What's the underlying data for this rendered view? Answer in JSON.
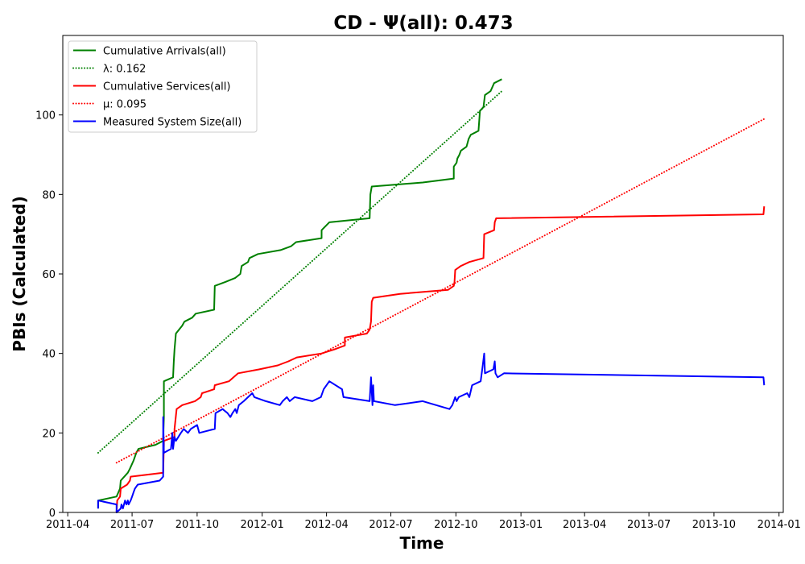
{
  "chart_data": {
    "type": "line",
    "title": "CD -  Ψ(all): 0.473",
    "xlabel": "Time",
    "ylabel": "PBIs (Calculated)",
    "x_type": "date",
    "xlim": [
      "2011-03-25",
      "2014-01-07"
    ],
    "ylim": [
      0,
      120
    ],
    "x_ticks": [
      "2011-04",
      "2011-07",
      "2011-10",
      "2012-01",
      "2012-04",
      "2012-07",
      "2012-10",
      "2013-01",
      "2013-04",
      "2013-07",
      "2013-10",
      "2014-01"
    ],
    "y_ticks": [
      0,
      20,
      40,
      60,
      80,
      100
    ],
    "grid": false,
    "legend_position": "upper-left",
    "series": [
      {
        "name": "Cumulative Arrivals(all)",
        "color": "#008000",
        "style": "solid",
        "points": [
          [
            "2011-05-14",
            1
          ],
          [
            "2011-05-14",
            3
          ],
          [
            "2011-06-09",
            4
          ],
          [
            "2011-06-14",
            6
          ],
          [
            "2011-06-15",
            8
          ],
          [
            "2011-06-25",
            10
          ],
          [
            "2011-06-28",
            11
          ],
          [
            "2011-07-03",
            13
          ],
          [
            "2011-07-07",
            15
          ],
          [
            "2011-07-10",
            16
          ],
          [
            "2011-08-03",
            17
          ],
          [
            "2011-08-14",
            18
          ],
          [
            "2011-08-15",
            24
          ],
          [
            "2011-08-15",
            33
          ],
          [
            "2011-08-28",
            34
          ],
          [
            "2011-08-29",
            38
          ],
          [
            "2011-08-30",
            41
          ],
          [
            "2011-09-01",
            45
          ],
          [
            "2011-09-10",
            47
          ],
          [
            "2011-09-13",
            48
          ],
          [
            "2011-09-24",
            49
          ],
          [
            "2011-09-29",
            50
          ],
          [
            "2011-10-25",
            51
          ],
          [
            "2011-10-26",
            57
          ],
          [
            "2011-11-10",
            58
          ],
          [
            "2011-11-24",
            59
          ],
          [
            "2011-12-01",
            60
          ],
          [
            "2011-12-03",
            62
          ],
          [
            "2011-12-12",
            63
          ],
          [
            "2011-12-14",
            64
          ],
          [
            "2011-12-26",
            65
          ],
          [
            "2012-01-27",
            66
          ],
          [
            "2012-02-11",
            67
          ],
          [
            "2012-02-18",
            68
          ],
          [
            "2012-03-25",
            69
          ],
          [
            "2012-03-25",
            71
          ],
          [
            "2012-04-05",
            73
          ],
          [
            "2012-06-01",
            74
          ],
          [
            "2012-06-02",
            80
          ],
          [
            "2012-06-04",
            82
          ],
          [
            "2012-08-15",
            83
          ],
          [
            "2012-09-28",
            84
          ],
          [
            "2012-09-28",
            87
          ],
          [
            "2012-10-02",
            88
          ],
          [
            "2012-10-03",
            89
          ],
          [
            "2012-10-06",
            90
          ],
          [
            "2012-10-08",
            91
          ],
          [
            "2012-10-16",
            92
          ],
          [
            "2012-10-19",
            94
          ],
          [
            "2012-10-22",
            95
          ],
          [
            "2012-11-02",
            96
          ],
          [
            "2012-11-04",
            101
          ],
          [
            "2012-11-09",
            102
          ],
          [
            "2012-11-11",
            105
          ],
          [
            "2012-11-19",
            106
          ],
          [
            "2012-11-24",
            108
          ],
          [
            "2012-12-05",
            109
          ]
        ]
      },
      {
        "name": "λ: 0.162",
        "color": "#008000",
        "style": "dotted",
        "points": [
          [
            "2011-05-14",
            15
          ],
          [
            "2012-12-05",
            106
          ]
        ]
      },
      {
        "name": "Cumulative Services(all)",
        "color": "#ff0000",
        "style": "solid",
        "points": [
          [
            "2011-06-09",
            0
          ],
          [
            "2011-06-10",
            3
          ],
          [
            "2011-06-14",
            4
          ],
          [
            "2011-06-15",
            6
          ],
          [
            "2011-06-24",
            7
          ],
          [
            "2011-06-28",
            8
          ],
          [
            "2011-06-29",
            9
          ],
          [
            "2011-08-14",
            10
          ],
          [
            "2011-08-15",
            17
          ],
          [
            "2011-08-15",
            18
          ],
          [
            "2011-08-30",
            19
          ],
          [
            "2011-08-30",
            21
          ],
          [
            "2011-09-02",
            26
          ],
          [
            "2011-09-10",
            27
          ],
          [
            "2011-09-28",
            28
          ],
          [
            "2011-10-06",
            29
          ],
          [
            "2011-10-08",
            30
          ],
          [
            "2011-10-25",
            31
          ],
          [
            "2011-10-26",
            32
          ],
          [
            "2011-11-15",
            33
          ],
          [
            "2011-11-28",
            35
          ],
          [
            "2011-12-28",
            36
          ],
          [
            "2012-01-23",
            37
          ],
          [
            "2012-02-07",
            38
          ],
          [
            "2012-02-19",
            39
          ],
          [
            "2012-03-25",
            40
          ],
          [
            "2012-04-12",
            41
          ],
          [
            "2012-04-27",
            42
          ],
          [
            "2012-04-27",
            44
          ],
          [
            "2012-05-28",
            45
          ],
          [
            "2012-06-01",
            46
          ],
          [
            "2012-06-03",
            48
          ],
          [
            "2012-06-04",
            53
          ],
          [
            "2012-06-06",
            54
          ],
          [
            "2012-07-14",
            55
          ],
          [
            "2012-09-20",
            56
          ],
          [
            "2012-09-28",
            57
          ],
          [
            "2012-09-29",
            58
          ],
          [
            "2012-09-30",
            61
          ],
          [
            "2012-10-08",
            62
          ],
          [
            "2012-10-20",
            63
          ],
          [
            "2012-11-09",
            64
          ],
          [
            "2012-11-10",
            70
          ],
          [
            "2012-11-24",
            71
          ],
          [
            "2012-11-25",
            73
          ],
          [
            "2012-11-27",
            74
          ],
          [
            "2013-12-10",
            75
          ],
          [
            "2013-12-11",
            77
          ]
        ]
      },
      {
        "name": "μ: 0.095",
        "color": "#ff0000",
        "style": "dotted",
        "points": [
          [
            "2011-06-09",
            12.5
          ],
          [
            "2013-12-11",
            99
          ]
        ]
      },
      {
        "name": "Measured System Size(all)",
        "color": "#0000ff",
        "style": "solid",
        "points": [
          [
            "2011-05-14",
            1
          ],
          [
            "2011-05-14",
            3
          ],
          [
            "2011-06-09",
            2
          ],
          [
            "2011-06-09",
            0
          ],
          [
            "2011-06-15",
            1
          ],
          [
            "2011-06-16",
            2
          ],
          [
            "2011-06-18",
            1
          ],
          [
            "2011-06-21",
            3
          ],
          [
            "2011-06-23",
            2
          ],
          [
            "2011-06-25",
            3
          ],
          [
            "2011-06-26",
            2
          ],
          [
            "2011-06-29",
            3
          ],
          [
            "2011-07-01",
            4
          ],
          [
            "2011-07-03",
            5
          ],
          [
            "2011-07-05",
            6
          ],
          [
            "2011-07-09",
            7
          ],
          [
            "2011-08-09",
            8
          ],
          [
            "2011-08-14",
            9
          ],
          [
            "2011-08-14",
            24
          ],
          [
            "2011-08-15",
            15
          ],
          [
            "2011-08-25",
            16
          ],
          [
            "2011-08-27",
            20
          ],
          [
            "2011-08-28",
            16
          ],
          [
            "2011-08-30",
            19
          ],
          [
            "2011-09-01",
            18
          ],
          [
            "2011-09-08",
            20
          ],
          [
            "2011-09-12",
            21
          ],
          [
            "2011-09-18",
            20
          ],
          [
            "2011-09-22",
            21
          ],
          [
            "2011-10-01",
            22
          ],
          [
            "2011-10-04",
            20
          ],
          [
            "2011-10-26",
            21
          ],
          [
            "2011-10-27",
            25
          ],
          [
            "2011-11-06",
            26
          ],
          [
            "2011-11-13",
            25
          ],
          [
            "2011-11-17",
            24
          ],
          [
            "2011-11-20",
            25
          ],
          [
            "2011-11-24",
            26
          ],
          [
            "2011-11-26",
            25
          ],
          [
            "2011-11-29",
            27
          ],
          [
            "2011-12-06",
            28
          ],
          [
            "2011-12-12",
            29
          ],
          [
            "2011-12-18",
            30
          ],
          [
            "2011-12-21",
            29
          ],
          [
            "2012-01-06",
            28
          ],
          [
            "2012-01-26",
            27
          ],
          [
            "2012-01-30",
            28
          ],
          [
            "2012-02-05",
            29
          ],
          [
            "2012-02-09",
            28
          ],
          [
            "2012-02-16",
            29
          ],
          [
            "2012-03-12",
            28
          ],
          [
            "2012-03-24",
            29
          ],
          [
            "2012-03-28",
            31
          ],
          [
            "2012-04-05",
            33
          ],
          [
            "2012-04-23",
            31
          ],
          [
            "2012-04-25",
            29
          ],
          [
            "2012-06-01",
            28
          ],
          [
            "2012-06-03",
            34
          ],
          [
            "2012-06-05",
            27
          ],
          [
            "2012-06-06",
            32
          ],
          [
            "2012-06-07",
            28
          ],
          [
            "2012-07-07",
            27
          ],
          [
            "2012-08-15",
            28
          ],
          [
            "2012-09-22",
            26
          ],
          [
            "2012-09-26",
            27
          ],
          [
            "2012-09-30",
            29
          ],
          [
            "2012-10-02",
            28
          ],
          [
            "2012-10-05",
            29
          ],
          [
            "2012-10-17",
            30
          ],
          [
            "2012-10-20",
            29
          ],
          [
            "2012-10-24",
            32
          ],
          [
            "2012-11-05",
            33
          ],
          [
            "2012-11-08",
            37
          ],
          [
            "2012-11-10",
            40
          ],
          [
            "2012-11-11",
            35
          ],
          [
            "2012-11-23",
            36
          ],
          [
            "2012-11-25",
            38
          ],
          [
            "2012-11-26",
            35
          ],
          [
            "2012-11-29",
            34
          ],
          [
            "2012-12-08",
            35
          ],
          [
            "2013-12-10",
            34
          ],
          [
            "2013-12-11",
            32
          ]
        ]
      }
    ]
  }
}
